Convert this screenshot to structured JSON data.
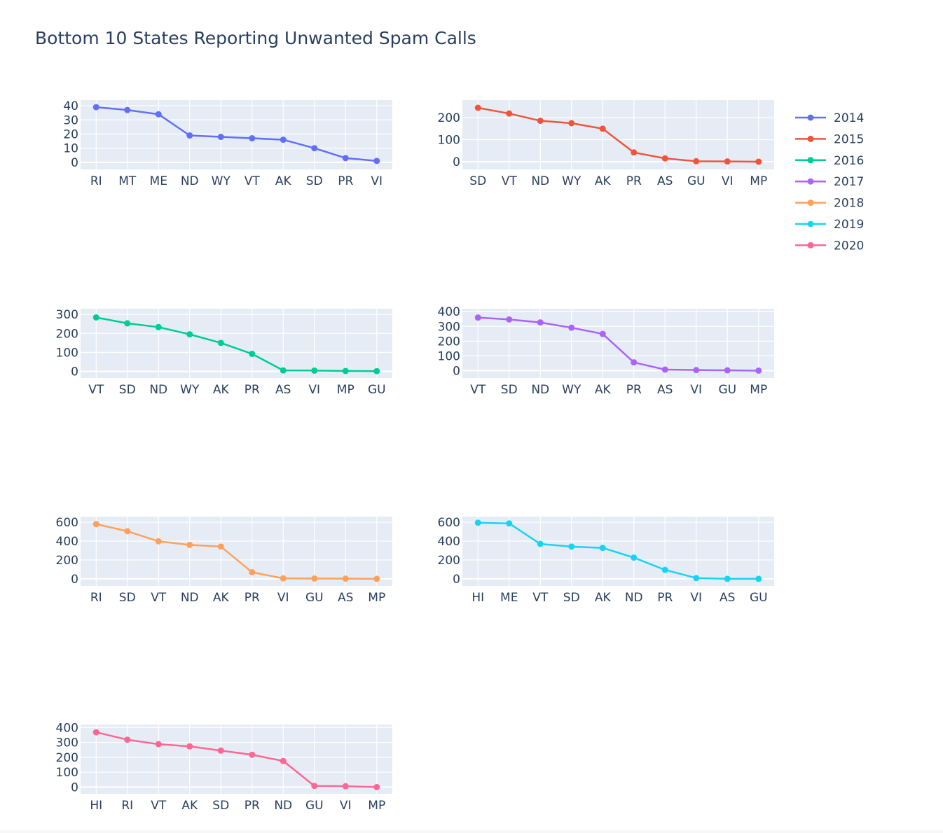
{
  "chart_data": {
    "type": "line",
    "title": "Bottom 10 States Reporting Unwanted Spam Calls",
    "legend_position": "right",
    "grid": true,
    "plot_background": "#e5ecf6",
    "series": [
      {
        "name": "2014",
        "color": "#636efa",
        "categories": [
          "RI",
          "MT",
          "ME",
          "ND",
          "WY",
          "VT",
          "AK",
          "SD",
          "PR",
          "VI"
        ],
        "values": [
          39,
          37,
          34,
          19,
          18,
          17,
          16,
          10,
          3,
          1
        ],
        "yticks": [
          0,
          10,
          20,
          30,
          40
        ],
        "ylim": [
          -5,
          44
        ]
      },
      {
        "name": "2015",
        "color": "#EF553B",
        "categories": [
          "SD",
          "VT",
          "ND",
          "WY",
          "AK",
          "PR",
          "AS",
          "GU",
          "VI",
          "MP"
        ],
        "values": [
          245,
          219,
          186,
          175,
          150,
          42,
          15,
          2,
          1,
          0
        ],
        "yticks": [
          0,
          100,
          200
        ],
        "ylim": [
          -35,
          280
        ]
      },
      {
        "name": "2016",
        "color": "#00cc96",
        "categories": [
          "VT",
          "SD",
          "ND",
          "WY",
          "AK",
          "PR",
          "AS",
          "VI",
          "MP",
          "GU"
        ],
        "values": [
          284,
          253,
          233,
          195,
          150,
          92,
          5,
          4,
          2,
          1
        ],
        "yticks": [
          0,
          100,
          200,
          300
        ],
        "ylim": [
          -35,
          330
        ]
      },
      {
        "name": "2017",
        "color": "#ab63fa",
        "categories": [
          "VT",
          "SD",
          "ND",
          "WY",
          "AK",
          "PR",
          "AS",
          "VI",
          "GU",
          "MP"
        ],
        "values": [
          360,
          347,
          327,
          291,
          249,
          56,
          7,
          4,
          2,
          0
        ],
        "yticks": [
          0,
          100,
          200,
          300,
          400
        ],
        "ylim": [
          -50,
          420
        ]
      },
      {
        "name": "2018",
        "color": "#FFA15A",
        "categories": [
          "RI",
          "SD",
          "VT",
          "ND",
          "AK",
          "PR",
          "VI",
          "GU",
          "AS",
          "MP"
        ],
        "values": [
          580,
          505,
          398,
          360,
          342,
          70,
          5,
          3,
          2,
          0
        ],
        "yticks": [
          0,
          200,
          400,
          600
        ],
        "ylim": [
          -75,
          660
        ]
      },
      {
        "name": "2019",
        "color": "#19d3f3",
        "categories": [
          "HI",
          "ME",
          "VT",
          "SD",
          "AK",
          "ND",
          "PR",
          "VI",
          "AS",
          "GU"
        ],
        "values": [
          595,
          588,
          370,
          342,
          328,
          225,
          95,
          8,
          0,
          0
        ],
        "yticks": [
          0,
          200,
          400,
          600
        ],
        "ylim": [
          -75,
          660
        ]
      },
      {
        "name": "2020",
        "color": "#FF6692",
        "categories": [
          "HI",
          "RI",
          "VT",
          "AK",
          "SD",
          "PR",
          "ND",
          "GU",
          "VI",
          "MP"
        ],
        "values": [
          368,
          318,
          288,
          273,
          245,
          217,
          175,
          8,
          6,
          0
        ],
        "yticks": [
          0,
          100,
          200,
          300,
          400
        ],
        "ylim": [
          -45,
          420
        ]
      }
    ]
  }
}
